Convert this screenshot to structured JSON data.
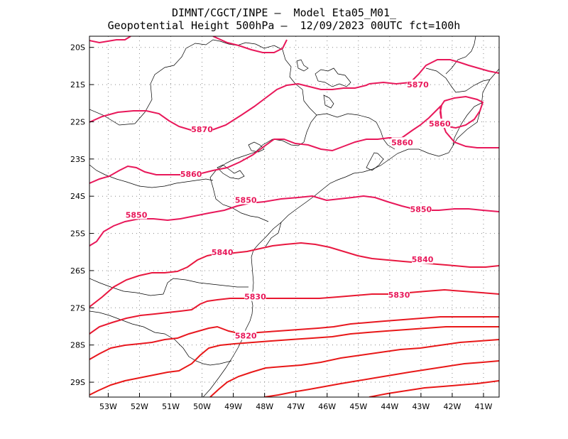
{
  "title": {
    "line1": "DIMNT/CGCT/INPE —  Model Eta05_M01_",
    "line2": "Geopotential Height 500hPa —  12/09/2023 00UTC fct=100h"
  },
  "colors": {
    "contour_magenta": "#e8185a",
    "contour_red": "#e81818",
    "coast": "#000000",
    "grid": "#888888"
  },
  "map": {
    "lon_range": [
      -53.6,
      -40.5
    ],
    "lat_range": [
      -29.4,
      -19.7
    ],
    "lon_ticks": [
      -53,
      -52,
      -51,
      -50,
      -49,
      -48,
      -47,
      -46,
      -45,
      -44,
      -43,
      -42,
      -41
    ],
    "lon_tick_labels": [
      "53W",
      "52W",
      "51W",
      "50W",
      "49W",
      "48W",
      "47W",
      "46W",
      "45W",
      "44W",
      "43W",
      "42W",
      "41W"
    ],
    "lat_ticks": [
      -20,
      -21,
      -22,
      -23,
      -24,
      -25,
      -26,
      -27,
      -28,
      -29
    ],
    "lat_tick_labels": [
      "20S",
      "21S",
      "22S",
      "23S",
      "24S",
      "25S",
      "26S",
      "27S",
      "28S",
      "29S"
    ],
    "grid": "dotted"
  },
  "contour_labels": [
    {
      "text": "5870",
      "lon": -43.1,
      "lat": -21.0
    },
    {
      "text": "5870",
      "lon": -50.0,
      "lat": -22.2
    },
    {
      "text": "5860",
      "lon": -42.4,
      "lat": -22.05
    },
    {
      "text": "5860",
      "lon": -43.6,
      "lat": -22.55
    },
    {
      "text": "5860",
      "lon": -50.35,
      "lat": -23.4
    },
    {
      "text": "5850",
      "lon": -48.6,
      "lat": -24.1
    },
    {
      "text": "5850",
      "lon": -43.0,
      "lat": -24.35
    },
    {
      "text": "5850",
      "lon": -52.1,
      "lat": -24.5
    },
    {
      "text": "5840",
      "lon": -49.35,
      "lat": -25.5
    },
    {
      "text": "5840",
      "lon": -42.95,
      "lat": -25.7
    },
    {
      "text": "5830",
      "lon": -48.3,
      "lat": -26.7
    },
    {
      "text": "5830",
      "lon": -43.7,
      "lat": -26.65
    },
    {
      "text": "5820",
      "lon": -48.6,
      "lat": -27.75
    }
  ]
}
